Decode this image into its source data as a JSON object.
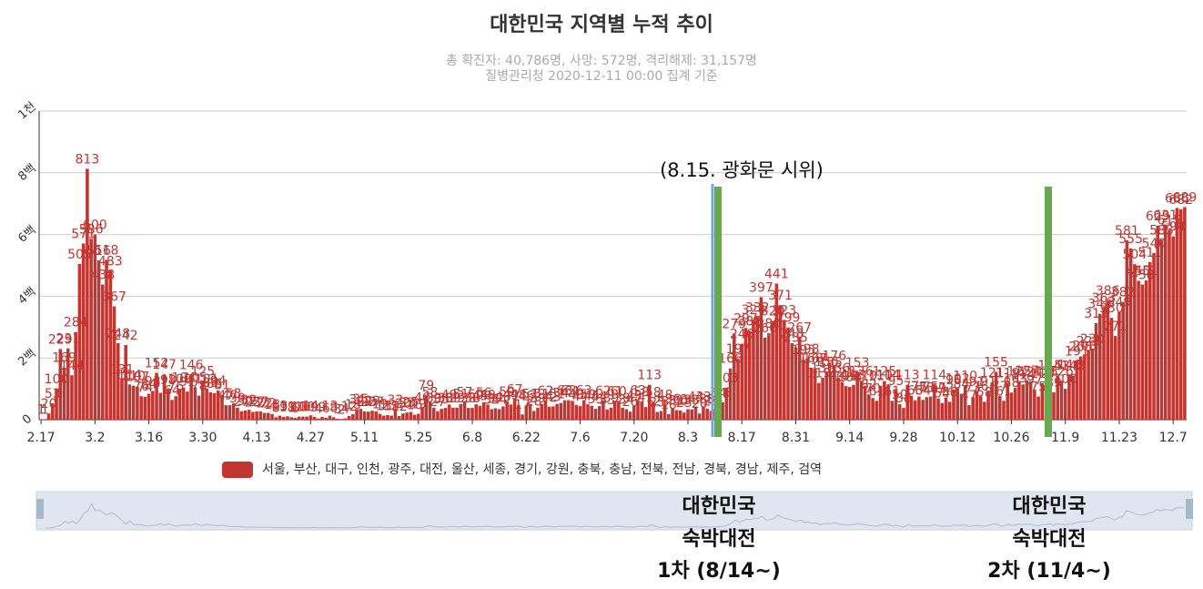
{
  "chart_data": {
    "type": "bar",
    "title": "대한민국 지역별 누적 추이",
    "subtitle": [
      "총 확진자: 40,786명, 사망: 572명, 격리해제: 31,157명",
      "질병관리청 2020-12-11 00:00 집계 기준"
    ],
    "annotation": "(8.15. 광화문 시위)",
    "grid": true,
    "ylim": [
      0,
      1000
    ],
    "yticks": [
      0,
      {
        "value": 200,
        "label": "2백"
      },
      {
        "value": 400,
        "label": "4백"
      },
      {
        "value": 600,
        "label": "6백"
      },
      {
        "value": 800,
        "label": "8백"
      },
      {
        "value": 1000,
        "label": "1천"
      }
    ],
    "categories": [
      "2.17",
      null,
      null,
      null,
      null,
      null,
      null,
      null,
      null,
      null,
      null,
      null,
      null,
      null,
      "3.2",
      null,
      null,
      null,
      null,
      null,
      null,
      null,
      null,
      null,
      null,
      null,
      null,
      null,
      "3.16",
      null,
      null,
      null,
      null,
      null,
      null,
      null,
      null,
      null,
      null,
      null,
      null,
      null,
      "3.30",
      null,
      null,
      null,
      null,
      null,
      null,
      null,
      null,
      null,
      null,
      null,
      null,
      null,
      "4.13",
      null,
      null,
      null,
      null,
      null,
      null,
      null,
      null,
      null,
      null,
      null,
      null,
      null,
      "4.27",
      null,
      null,
      null,
      null,
      null,
      null,
      null,
      null,
      null,
      null,
      null,
      null,
      null,
      "5.11",
      null,
      null,
      null,
      null,
      null,
      null,
      null,
      null,
      null,
      null,
      null,
      null,
      null,
      "5.25",
      null,
      null,
      null,
      null,
      null,
      null,
      null,
      null,
      null,
      null,
      null,
      null,
      null,
      "6.8",
      null,
      null,
      null,
      null,
      null,
      null,
      null,
      null,
      null,
      null,
      null,
      null,
      null,
      "6.22",
      null,
      null,
      null,
      null,
      null,
      null,
      null,
      null,
      null,
      null,
      null,
      null,
      null,
      "7.6",
      null,
      null,
      null,
      null,
      null,
      null,
      null,
      null,
      null,
      null,
      null,
      null,
      null,
      "7.20",
      null,
      null,
      null,
      null,
      null,
      null,
      null,
      null,
      null,
      null,
      null,
      null,
      null,
      "8.3",
      null,
      null,
      null,
      null,
      null,
      null,
      null,
      null,
      null,
      null,
      null,
      null,
      null,
      "8.17",
      null,
      null,
      null,
      null,
      null,
      null,
      null,
      null,
      null,
      null,
      null,
      null,
      null,
      "8.31",
      null,
      null,
      null,
      null,
      null,
      null,
      null,
      null,
      null,
      null,
      null,
      null,
      null,
      "9.14",
      null,
      null,
      null,
      null,
      null,
      null,
      null,
      null,
      null,
      null,
      null,
      null,
      null,
      "9.28",
      null,
      null,
      null,
      null,
      null,
      null,
      null,
      null,
      null,
      null,
      null,
      null,
      null,
      "10.12",
      null,
      null,
      null,
      null,
      null,
      null,
      null,
      null,
      null,
      null,
      null,
      null,
      null,
      "10.26",
      null,
      null,
      null,
      null,
      null,
      null,
      null,
      null,
      null,
      null,
      null,
      null,
      null,
      "11.9",
      null,
      null,
      null,
      null,
      null,
      null,
      null,
      null,
      null,
      null,
      null,
      null,
      null,
      "11.23",
      null,
      null,
      null,
      null,
      null,
      null,
      null,
      null,
      null,
      null,
      null,
      null,
      null,
      "12.7",
      null,
      null,
      null
    ],
    "series": [
      {
        "name": "서울, 부산, 대구, 인천, 광주, 대전, 울산, 세종, 경기, 강원, 충북, 충남, 전북, 전남, 경북, 경남, 제주, 검역",
        "color": "#c23531",
        "values": [
          1,
          1,
          20,
          53,
          100,
          229,
          169,
          231,
          144,
          284,
          505,
          571,
          813,
          586,
          600,
          516,
          438,
          518,
          483,
          367,
          248,
          131,
          242,
          114,
          110,
          107,
          76,
          74,
          84,
          93,
          152,
          87,
          147,
          98,
          64,
          76,
          100,
          104,
          91,
          146,
          105,
          78,
          125,
          101,
          89,
          86,
          94,
          81,
          47,
          47,
          53,
          39,
          27,
          30,
          32,
          25,
          27,
          27,
          22,
          22,
          18,
          8,
          13,
          9,
          11,
          8,
          6,
          10,
          10,
          10,
          14,
          9,
          4,
          9,
          6,
          13,
          8,
          3,
          2,
          4,
          12,
          18,
          34,
          35,
          27,
          26,
          29,
          27,
          19,
          13,
          15,
          13,
          32,
          12,
          20,
          23,
          25,
          16,
          19,
          40,
          79,
          58,
          39,
          27,
          35,
          38,
          49,
          39,
          39,
          51,
          57,
          38,
          38,
          50,
          45,
          56,
          49,
          34,
          37,
          34,
          43,
          59,
          49,
          67,
          48,
          17,
          46,
          51,
          28,
          39,
          51,
          62,
          42,
          43,
          51,
          54,
          63,
          63,
          61,
          48,
          44,
          63,
          50,
          45,
          35,
          44,
          62,
          33,
          39,
          61,
          60,
          39,
          34,
          26,
          45,
          63,
          59,
          41,
          113,
          58,
          25,
          28,
          48,
          18,
          36,
          31,
          30,
          23,
          34,
          33,
          43,
          20,
          43,
          36,
          28,
          34,
          54,
          56,
          103,
          166,
          279,
          197,
          246,
          297,
          288,
          324,
          332,
          397,
          266,
          280,
          320,
          441,
          371,
          323,
          299,
          248,
          235,
          267,
          195,
          198,
          168,
          167,
          119,
          136,
          156,
          155,
          176,
          136,
          121,
          109,
          106,
          113,
          153,
          126,
          110,
          82,
          70,
          61,
          110,
          125,
          114,
          61,
          95,
          50,
          38,
          113,
          77,
          63,
          75,
          64,
          73,
          75,
          114,
          69,
          54,
          72,
          58,
          98,
          102,
          84,
          110,
          47,
          73,
          91,
          76,
          58,
          91,
          121,
          155,
          77,
          61,
          119,
          88,
          103,
          125,
          114,
          127,
          124,
          97,
          75,
          118,
          125,
          145,
          89,
          143,
          126,
          100,
          146,
          143,
          191,
          205,
          208,
          223,
          230,
          313,
          343,
          363,
          386,
          330,
          271,
          349,
          382,
          581,
          555,
          504,
          450,
          438,
          451,
          511,
          540,
          629,
          583,
          631,
          615,
          594,
          686,
          682,
          689
        ]
      }
    ]
  },
  "notes": [
    {
      "lines": [
        "대한민국",
        "숙박대전",
        "1차 (8/14~)"
      ]
    },
    {
      "lines": [
        "대한민국",
        "숙박대전",
        "2차 (11/4~)"
      ]
    }
  ]
}
